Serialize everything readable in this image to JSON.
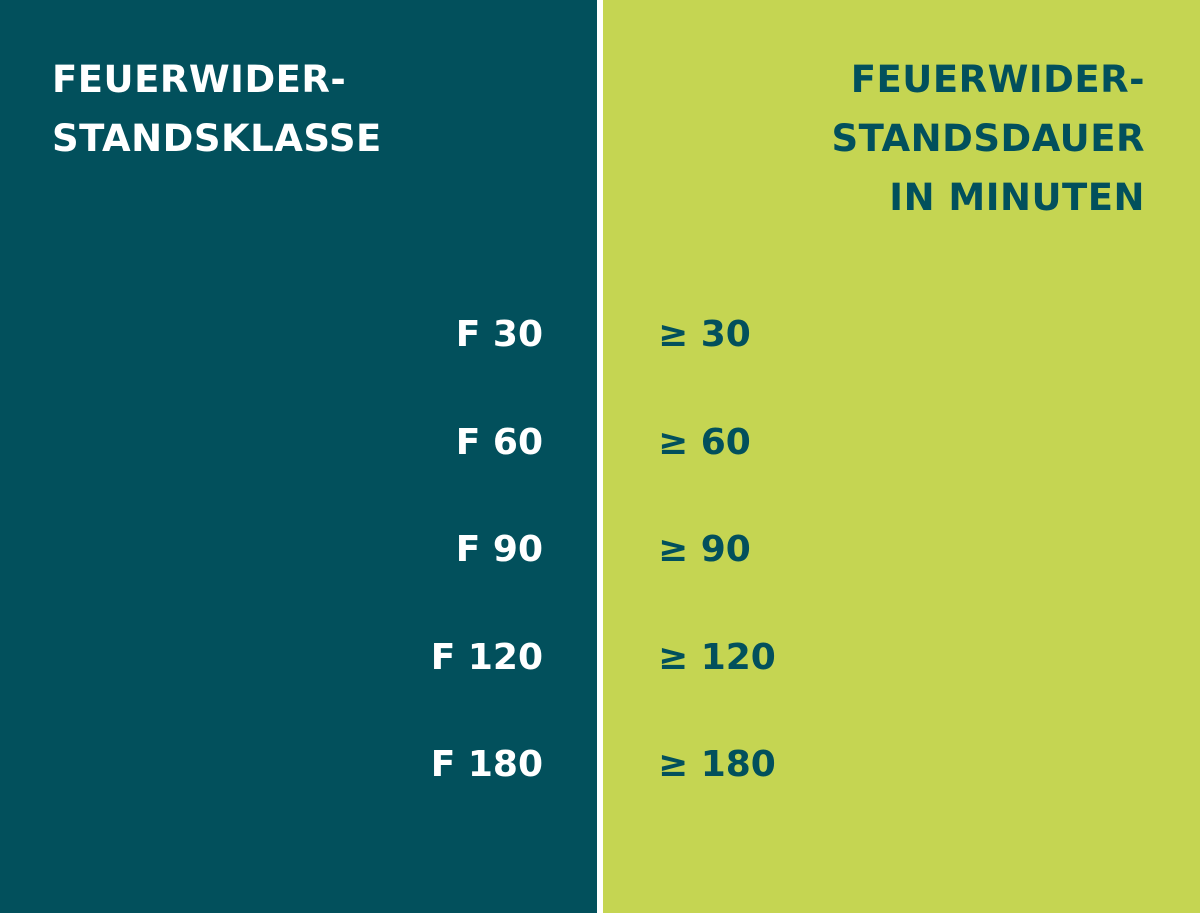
{
  "table": {
    "headers": [
      [
        "FEUERWIDER-",
        "STANDSKLASSE"
      ],
      [
        "FEUERWIDER-",
        "STANDSDAUER",
        "IN MINUTEN"
      ]
    ],
    "rows": [
      [
        "F 30",
        "≥ 30"
      ],
      [
        "F 60",
        "≥ 60"
      ],
      [
        "F 90",
        "≥ 90"
      ],
      [
        "F 120",
        "≥ 120"
      ],
      [
        "F 180",
        "≥ 180"
      ]
    ]
  }
}
